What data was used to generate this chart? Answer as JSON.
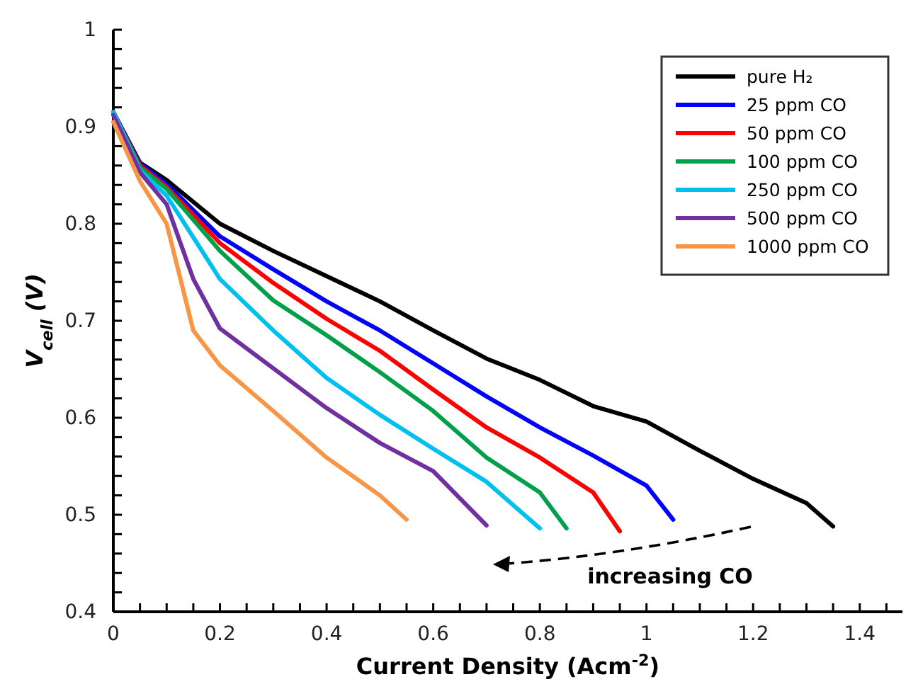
{
  "chart_data": {
    "type": "line",
    "xlabel": "Current Density (Acm$^{-2}$)",
    "ylabel": "V$_{cell}$ (V)",
    "xlim": [
      0,
      1.48
    ],
    "ylim": [
      0.4,
      1
    ],
    "xticks": [
      0,
      {
        "value": 0.05,
        "label": null
      },
      {
        "value": 0.1,
        "label": null
      },
      {
        "value": 0.15,
        "label": null
      },
      0.2,
      {
        "value": 0.25,
        "label": null
      },
      {
        "value": 0.3,
        "label": null
      },
      {
        "value": 0.35,
        "label": null
      },
      0.4,
      {
        "value": 0.45,
        "label": null
      },
      {
        "value": 0.5,
        "label": null
      },
      {
        "value": 0.55,
        "label": null
      },
      0.6,
      {
        "value": 0.65,
        "label": null
      },
      {
        "value": 0.7,
        "label": null
      },
      {
        "value": 0.75,
        "label": null
      },
      0.8,
      {
        "value": 0.85,
        "label": null
      },
      {
        "value": 0.9,
        "label": null
      },
      {
        "value": 0.95,
        "label": null
      },
      1,
      {
        "value": 1.05,
        "label": null
      },
      {
        "value": 1.1,
        "label": null
      },
      {
        "value": 1.15,
        "label": null
      },
      1.2,
      {
        "value": 1.25,
        "label": null
      },
      {
        "value": 1.3,
        "label": null
      },
      {
        "value": 1.35,
        "label": null
      },
      1.4,
      {
        "value": 1.45,
        "label": null
      }
    ],
    "yticks": [
      0.4,
      {
        "value": 0.42,
        "label": null
      },
      {
        "value": 0.44,
        "label": null
      },
      {
        "value": 0.46,
        "label": null
      },
      {
        "value": 0.48,
        "label": null
      },
      0.5,
      {
        "value": 0.52,
        "label": null
      },
      {
        "value": 0.54,
        "label": null
      },
      {
        "value": 0.56,
        "label": null
      },
      {
        "value": 0.58,
        "label": null
      },
      0.6,
      {
        "value": 0.62,
        "label": null
      },
      {
        "value": 0.64,
        "label": null
      },
      {
        "value": 0.66,
        "label": null
      },
      {
        "value": 0.68,
        "label": null
      },
      0.7,
      {
        "value": 0.72,
        "label": null
      },
      {
        "value": 0.74,
        "label": null
      },
      {
        "value": 0.76,
        "label": null
      },
      {
        "value": 0.78,
        "label": null
      },
      0.8,
      {
        "value": 0.82,
        "label": null
      },
      {
        "value": 0.84,
        "label": null
      },
      {
        "value": 0.86,
        "label": null
      },
      {
        "value": 0.88,
        "label": null
      },
      0.9,
      {
        "value": 0.92,
        "label": null
      },
      {
        "value": 0.94,
        "label": null
      },
      {
        "value": 0.96,
        "label": null
      },
      {
        "value": 0.98,
        "label": null
      },
      1
    ],
    "grid": false,
    "legend": "top right",
    "marker": "none",
    "line_style": "solid",
    "annotations": [
      "increasing CO"
    ],
    "series": [
      {
        "name": "pure H₂",
        "color": "#000000",
        "x": [
          0,
          0.05,
          0.1,
          0.2,
          0.3,
          0.4,
          0.5,
          0.6,
          0.7,
          0.8,
          0.9,
          1,
          1.1,
          1.2,
          1.3,
          1.35
        ],
        "values": [
          0.915,
          0.863,
          0.845,
          0.8,
          0.772,
          0.746,
          0.72,
          0.69,
          0.661,
          0.639,
          0.612,
          0.596,
          0.566,
          0.537,
          0.512,
          0.488
        ]
      },
      {
        "name": "25 ppm CO",
        "color": "#0000ff",
        "x": [
          0,
          0.05,
          0.1,
          0.2,
          0.3,
          0.4,
          0.5,
          0.6,
          0.7,
          0.8,
          0.9,
          1,
          1.05
        ],
        "values": [
          0.915,
          0.862,
          0.841,
          0.787,
          0.753,
          0.72,
          0.69,
          0.656,
          0.622,
          0.59,
          0.561,
          0.53,
          0.495
        ]
      },
      {
        "name": "50 ppm CO",
        "color": "#ff0000",
        "x": [
          0,
          0.05,
          0.1,
          0.2,
          0.3,
          0.4,
          0.5,
          0.6,
          0.7,
          0.8,
          0.9,
          0.95
        ],
        "values": [
          0.915,
          0.86,
          0.838,
          0.78,
          0.739,
          0.702,
          0.669,
          0.629,
          0.59,
          0.559,
          0.523,
          0.483
        ]
      },
      {
        "name": "100 ppm CO",
        "color": "#00a04a",
        "x": [
          0,
          0.05,
          0.1,
          0.2,
          0.3,
          0.4,
          0.5,
          0.6,
          0.7,
          0.8,
          0.85
        ],
        "values": [
          0.915,
          0.858,
          0.836,
          0.772,
          0.721,
          0.685,
          0.647,
          0.607,
          0.559,
          0.523,
          0.486
        ]
      },
      {
        "name": "250 ppm CO",
        "color": "#00c0f0",
        "x": [
          0,
          0.05,
          0.1,
          0.2,
          0.3,
          0.4,
          0.5,
          0.6,
          0.7,
          0.8
        ],
        "values": [
          0.915,
          0.855,
          0.829,
          0.743,
          0.69,
          0.641,
          0.603,
          0.568,
          0.534,
          0.486
        ]
      },
      {
        "name": "500 ppm CO",
        "color": "#7030a0",
        "x": [
          0,
          0.05,
          0.1,
          0.15,
          0.2,
          0.3,
          0.4,
          0.5,
          0.6,
          0.7
        ],
        "values": [
          0.912,
          0.853,
          0.82,
          0.743,
          0.692,
          0.651,
          0.61,
          0.574,
          0.545,
          0.489
        ]
      },
      {
        "name": "1000 ppm CO",
        "color": "#f79646",
        "x": [
          0,
          0.05,
          0.1,
          0.15,
          0.2,
          0.3,
          0.4,
          0.5,
          0.55
        ],
        "values": [
          0.905,
          0.844,
          0.8,
          0.69,
          0.654,
          0.607,
          0.559,
          0.52,
          0.495
        ]
      }
    ]
  }
}
